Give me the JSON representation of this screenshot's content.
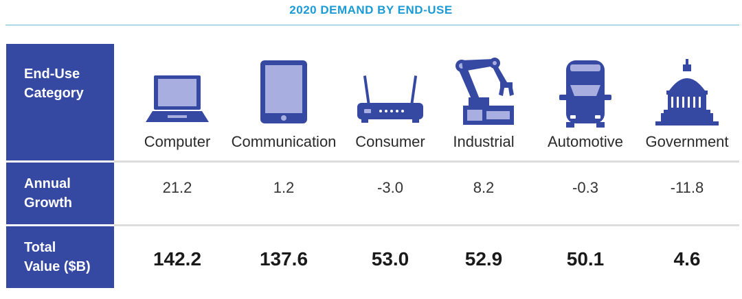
{
  "title": "2020 DEMAND BY END-USE",
  "row_headers": {
    "category": [
      "End-Use",
      "Category"
    ],
    "growth": [
      "Annual",
      "Growth"
    ],
    "total": [
      "Total",
      "Value ($B)"
    ]
  },
  "colors": {
    "title": "#1b9ad6",
    "header_bg": "#3549a3",
    "icon_dark": "#3549a3",
    "icon_light": "#a9aee0"
  },
  "chart_data": {
    "type": "table",
    "title": "2020 DEMAND BY END-USE",
    "columns": [
      "Computer",
      "Communication",
      "Consumer",
      "Industrial",
      "Automotive",
      "Government"
    ],
    "icons": [
      "laptop-icon",
      "tablet-icon",
      "router-icon",
      "robot-arm-icon",
      "car-icon",
      "capitol-icon"
    ],
    "rows": [
      {
        "name": "Annual Growth",
        "values": [
          "21.2",
          "1.2",
          "-3.0",
          "8.2",
          "-0.3",
          "-11.8"
        ]
      },
      {
        "name": "Total Value ($B)",
        "values": [
          "142.2",
          "137.6",
          "53.0",
          "52.9",
          "50.1",
          "4.6"
        ]
      }
    ]
  }
}
